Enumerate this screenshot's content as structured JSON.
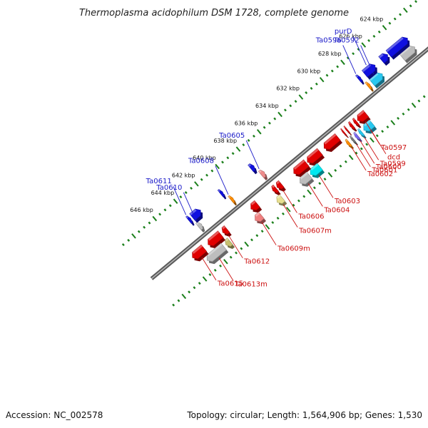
{
  "title": "Thermoplasma acidophilum DSM 1728, complete genome",
  "footer": {
    "accession": "Accession: NC_002578",
    "summary": "Topology: circular; Length: 1,564,906 bp; Genes: 1,530"
  },
  "colors": {
    "forward_gene_label": "#1a1ac8",
    "reverse_gene_label": "#cc1111",
    "backbone": "#777777",
    "tick": "#1a7f1a"
  },
  "scale": {
    "unit": "kbp",
    "range_kbp": [
      622,
      647
    ],
    "ticks": [
      {
        "kbp": 624,
        "label": "624 kbp"
      },
      {
        "kbp": 626,
        "label": "626 kbp"
      },
      {
        "kbp": 628,
        "label": "628 kbp"
      },
      {
        "kbp": 630,
        "label": "630 kbp"
      },
      {
        "kbp": 632,
        "label": "632 kbp"
      },
      {
        "kbp": 634,
        "label": "634 kbp"
      },
      {
        "kbp": 636,
        "label": "636 kbp"
      },
      {
        "kbp": 638,
        "label": "638 kbp"
      },
      {
        "kbp": 640,
        "label": "640 kbp"
      },
      {
        "kbp": 642,
        "label": "642 kbp"
      },
      {
        "kbp": 644,
        "label": "644 kbp"
      },
      {
        "kbp": 646,
        "label": "646 kbp"
      }
    ]
  },
  "features": [
    {
      "strand": "outer",
      "start": 623.2,
      "end": 624.4,
      "color": "#bdbdbd"
    },
    {
      "strand": "outer",
      "start": 623.2,
      "end": 625.0,
      "color": "#1010e0",
      "row": 2
    },
    {
      "strand": "outer",
      "start": 625.1,
      "end": 625.7,
      "color": "#1010e0",
      "row": 2
    },
    {
      "strand": "outer",
      "start": 626.3,
      "end": 627.3,
      "color": "#28c8f0",
      "label": "Ta0592"
    },
    {
      "strand": "outer",
      "start": 626.3,
      "end": 627.3,
      "color": "#1010e0",
      "row": 2,
      "label": "purD"
    },
    {
      "strand": "outer",
      "start": 627.5,
      "end": 627.7,
      "color": "#ff8c00"
    },
    {
      "strand": "outer",
      "start": 627.7,
      "end": 627.9,
      "color": "#1010e0",
      "row": 2,
      "label": "Ta0596"
    },
    {
      "strand": "outer",
      "start": 637.6,
      "end": 637.9,
      "color": "#f08c8c",
      "label": "Ta0605"
    },
    {
      "strand": "outer",
      "start": 637.9,
      "end": 638.2,
      "color": "#1010e0",
      "row": 2
    },
    {
      "strand": "outer",
      "start": 640.6,
      "end": 640.8,
      "color": "#ff8c00",
      "label": "Ta0608"
    },
    {
      "strand": "outer",
      "start": 640.9,
      "end": 641.1,
      "color": "#1010e0",
      "row": 2
    },
    {
      "strand": "outer",
      "start": 643.6,
      "end": 643.9,
      "color": "#bdbdbd",
      "label": "Ta0610"
    },
    {
      "strand": "outer",
      "start": 643.0,
      "end": 643.8,
      "color": "#1010e0",
      "row": 2
    },
    {
      "strand": "outer",
      "start": 643.95,
      "end": 644.15,
      "color": "#1010e0",
      "row": 2,
      "label": "Ta0611"
    },
    {
      "strand": "inner",
      "start": 629.1,
      "end": 629.9,
      "color": "#e00000",
      "label": "Ta0597"
    },
    {
      "strand": "inner",
      "start": 629.2,
      "end": 630.0,
      "color": "#28c8f0",
      "row": 2,
      "label": "dcd"
    },
    {
      "strand": "inner",
      "start": 630.0,
      "end": 630.2,
      "color": "#e00000"
    },
    {
      "strand": "inner",
      "start": 630.2,
      "end": 630.4,
      "color": "#28c8f0",
      "row": 2,
      "label": "Ta0599"
    },
    {
      "strand": "inner",
      "start": 630.4,
      "end": 630.6,
      "color": "#e00000"
    },
    {
      "strand": "inner",
      "start": 630.6,
      "end": 630.8,
      "color": "#7b68ee",
      "row": 2,
      "label": "Ta0600"
    },
    {
      "strand": "inner",
      "start": 630.9,
      "end": 631.0,
      "color": "#e00000"
    },
    {
      "strand": "inner",
      "start": 631.0,
      "end": 631.15,
      "color": "#777777",
      "row": 2,
      "label": "Ta0601"
    },
    {
      "strand": "inner",
      "start": 631.2,
      "end": 631.3,
      "color": "#e00000"
    },
    {
      "strand": "inner",
      "start": 631.4,
      "end": 631.6,
      "color": "#ff8c00",
      "row": 2,
      "label": "Ta0602"
    },
    {
      "strand": "inner",
      "start": 631.8,
      "end": 633.1,
      "color": "#e00000"
    },
    {
      "strand": "inner",
      "start": 633.5,
      "end": 634.7,
      "color": "#e00000"
    },
    {
      "strand": "inner",
      "start": 634.2,
      "end": 635.1,
      "color": "#00e8f0",
      "row": 2,
      "label": "Ta0603"
    },
    {
      "strand": "inner",
      "start": 634.8,
      "end": 636.0,
      "color": "#e00000"
    },
    {
      "strand": "inner",
      "start": 635.2,
      "end": 636.1,
      "color": "#bdbdbd",
      "row": 2,
      "label": "Ta0604"
    },
    {
      "strand": "inner",
      "start": 637.2,
      "end": 637.6,
      "color": "#e00000",
      "label": "Ta0606"
    },
    {
      "strand": "inner",
      "start": 637.7,
      "end": 638.0,
      "color": "#e00000"
    },
    {
      "strand": "inner",
      "start": 637.8,
      "end": 638.3,
      "color": "#e8e090",
      "row": 2,
      "label": "Ta0607m"
    },
    {
      "strand": "inner",
      "start": 639.5,
      "end": 640.1,
      "color": "#e00000"
    },
    {
      "strand": "inner",
      "start": 639.8,
      "end": 640.4,
      "color": "#f08080",
      "row": 2,
      "label": "Ta0609m"
    },
    {
      "strand": "inner",
      "start": 642.4,
      "end": 642.8,
      "color": "#e00000",
      "label": "Ta0612"
    },
    {
      "strand": "inner",
      "start": 642.8,
      "end": 643.2,
      "color": "#c8c070",
      "row": 2
    },
    {
      "strand": "inner",
      "start": 643.0,
      "end": 644.2,
      "color": "#e00000"
    },
    {
      "strand": "inner",
      "start": 643.4,
      "end": 645.0,
      "color": "#bdbdbd",
      "row": 2,
      "label": "Ta0613m"
    },
    {
      "strand": "inner",
      "start": 644.6,
      "end": 645.7,
      "color": "#e00000",
      "label": "Ta0615"
    }
  ]
}
